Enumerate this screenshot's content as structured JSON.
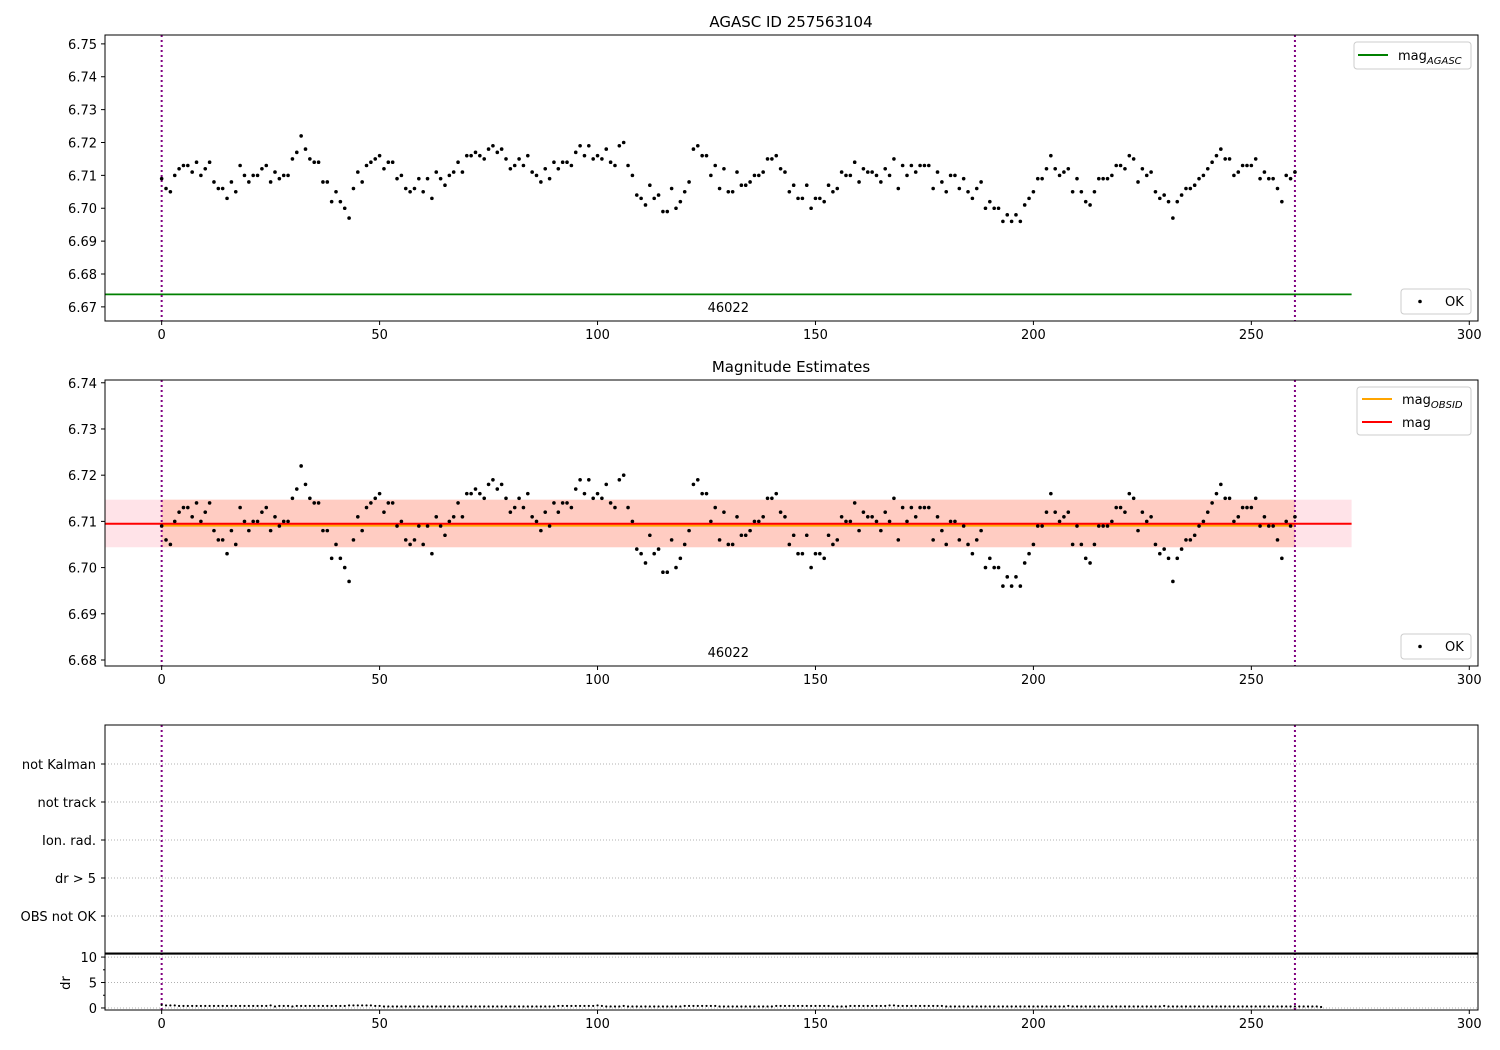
{
  "chart_data": [
    {
      "type": "scatter",
      "title": "AGASC ID 257563104",
      "xlim": [
        -13,
        302
      ],
      "ylim": [
        6.6657,
        6.7527
      ],
      "xticks": [
        0,
        50,
        100,
        150,
        200,
        250,
        300
      ],
      "yticks": [
        6.67,
        6.68,
        6.69,
        6.7,
        6.71,
        6.72,
        6.73,
        6.74,
        6.75
      ],
      "hlines": [
        {
          "name": "mag_AGASC",
          "label": "mag",
          "sub": "AGASC",
          "y": 6.6738,
          "x": [
            -13,
            273
          ],
          "color": "#008000"
        }
      ],
      "vlines": [
        0,
        260
      ],
      "annotation": {
        "text": "46022",
        "x": 130
      },
      "legend": [
        {
          "label": "mag",
          "sub": "AGASC",
          "position": "top-right"
        },
        {
          "label": "OK",
          "position": "bottom-right"
        }
      ],
      "series_ref": "mag"
    },
    {
      "type": "scatter",
      "title": "Magnitude Estimates",
      "xlim": [
        -13,
        302
      ],
      "ylim": [
        6.6787,
        6.7406
      ],
      "xticks": [
        0,
        50,
        100,
        150,
        200,
        250,
        300
      ],
      "yticks": [
        6.68,
        6.69,
        6.7,
        6.71,
        6.72,
        6.73,
        6.74
      ],
      "mag": 6.7095,
      "mag_obsid": 6.7093,
      "band_mag": [
        6.7044,
        6.7147
      ],
      "band_obsid": [
        6.7044,
        6.7147
      ],
      "vlines": [
        0,
        260
      ],
      "annotation": {
        "text": "46022",
        "x": 130
      },
      "legend": [
        {
          "label": "mag",
          "sub": "OBSID",
          "color": "#ffa500"
        },
        {
          "label": "mag",
          "color": "#ff0000"
        },
        {
          "label": "OK"
        }
      ],
      "series_ref": "mag"
    },
    {
      "type": "scatter",
      "title": "",
      "categories": [
        "OBS not OK",
        "dr > 5",
        "Ion. rad.",
        "not track",
        "not Kalman"
      ],
      "vlines": [
        0,
        260
      ]
    },
    {
      "type": "scatter",
      "ylabel": "dr",
      "xlim": [
        -13,
        302
      ],
      "ylim": [
        -0.4,
        10.8
      ],
      "yticks": [
        0,
        5,
        10
      ],
      "xticks": [
        0,
        50,
        100,
        150,
        200,
        250,
        300
      ],
      "vlines": [
        0,
        260
      ],
      "series_ref": "dr"
    }
  ],
  "series": {
    "mag": [
      6.709,
      6.706,
      6.705,
      6.71,
      6.712,
      6.713,
      6.713,
      6.711,
      6.714,
      6.71,
      6.712,
      6.714,
      6.708,
      6.706,
      6.706,
      6.703,
      6.708,
      6.705,
      6.713,
      6.71,
      6.708,
      6.71,
      6.71,
      6.712,
      6.713,
      6.708,
      6.711,
      6.709,
      6.71,
      6.71,
      6.715,
      6.717,
      6.722,
      6.718,
      6.715,
      6.714,
      6.714,
      6.708,
      6.708,
      6.702,
      6.705,
      6.702,
      6.7,
      6.697,
      6.706,
      6.711,
      6.708,
      6.713,
      6.714,
      6.715,
      6.716,
      6.712,
      6.714,
      6.714,
      6.709,
      6.71,
      6.706,
      6.705,
      6.706,
      6.709,
      6.705,
      6.709,
      6.703,
      6.711,
      6.709,
      6.707,
      6.71,
      6.711,
      6.714,
      6.711,
      6.716,
      6.716,
      6.717,
      6.716,
      6.715,
      6.718,
      6.719,
      6.717,
      6.718,
      6.715,
      6.712,
      6.713,
      6.715,
      6.713,
      6.716,
      6.711,
      6.71,
      6.708,
      6.712,
      6.709,
      6.714,
      6.712,
      6.714,
      6.714,
      6.713,
      6.717,
      6.719,
      6.716,
      6.719,
      6.715,
      6.716,
      6.715,
      6.718,
      6.714,
      6.713,
      6.719,
      6.72,
      6.713,
      6.71,
      6.704,
      6.703,
      6.701,
      6.707,
      6.703,
      6.704,
      6.699,
      6.699,
      6.706,
      6.7,
      6.702,
      6.705,
      6.708,
      6.718,
      6.719,
      6.716,
      6.716,
      6.71,
      6.713,
      6.706,
      6.712,
      6.705,
      6.705,
      6.711,
      6.707,
      6.707,
      6.708,
      6.71,
      6.71,
      6.711,
      6.715,
      6.715,
      6.716,
      6.712,
      6.711,
      6.705,
      6.707,
      6.703,
      6.703,
      6.707,
      6.7,
      6.703,
      6.703,
      6.702,
      6.707,
      6.705,
      6.706,
      6.711,
      6.71,
      6.71,
      6.714,
      6.708,
      6.712,
      6.711,
      6.711,
      6.71,
      6.708,
      6.712,
      6.71,
      6.715,
      6.706,
      6.713,
      6.71,
      6.713,
      6.711,
      6.713,
      6.713,
      6.713,
      6.706,
      6.711,
      6.708,
      6.705,
      6.71,
      6.71,
      6.706,
      6.709,
      6.705,
      6.703,
      6.706,
      6.708,
      6.7,
      6.702,
      6.7,
      6.7,
      6.696,
      6.698,
      6.696,
      6.698,
      6.696,
      6.701,
      6.703,
      6.705,
      6.709,
      6.709,
      6.712,
      6.716,
      6.712,
      6.71,
      6.711,
      6.712,
      6.705,
      6.709,
      6.705,
      6.702,
      6.701,
      6.705,
      6.709,
      6.709,
      6.709,
      6.71,
      6.713,
      6.713,
      6.712,
      6.716,
      6.715,
      6.708,
      6.712,
      6.71,
      6.711,
      6.705,
      6.703,
      6.704,
      6.702,
      6.697,
      6.702,
      6.704,
      6.706,
      6.706,
      6.707,
      6.709,
      6.71,
      6.712,
      6.714,
      6.716,
      6.718,
      6.715,
      6.715,
      6.71,
      6.711,
      6.713,
      6.713,
      6.713,
      6.715,
      6.709,
      6.711,
      6.709,
      6.709,
      6.706,
      6.702,
      6.71,
      6.709,
      6.711
    ],
    "dr": [
      0.6,
      0.5,
      0.5,
      0.5,
      0.4,
      0.4,
      0.4,
      0.4,
      0.4,
      0.4,
      0.4,
      0.4,
      0.4,
      0.4,
      0.4,
      0.4,
      0.4,
      0.4,
      0.4,
      0.4,
      0.4,
      0.4,
      0.4,
      0.4,
      0.4,
      0.5,
      0.3,
      0.4,
      0.4,
      0.4,
      0.3,
      0.4,
      0.4,
      0.4,
      0.4,
      0.4,
      0.4,
      0.4,
      0.4,
      0.4,
      0.4,
      0.4,
      0.4,
      0.5,
      0.5,
      0.5,
      0.5,
      0.5,
      0.5,
      0.4,
      0.4,
      0.3,
      0.3,
      0.3,
      0.3,
      0.3,
      0.3,
      0.3,
      0.3,
      0.3,
      0.3,
      0.3,
      0.3,
      0.3,
      0.3,
      0.3,
      0.3,
      0.3,
      0.3,
      0.3,
      0.3,
      0.3,
      0.3,
      0.3,
      0.3,
      0.3,
      0.3,
      0.3,
      0.3,
      0.3,
      0.3,
      0.3,
      0.3,
      0.3,
      0.3,
      0.3,
      0.3,
      0.3,
      0.3,
      0.3,
      0.3,
      0.4,
      0.4,
      0.4,
      0.4,
      0.4,
      0.4,
      0.4,
      0.4,
      0.4,
      0.5,
      0.4,
      0.3,
      0.3,
      0.3,
      0.3,
      0.4,
      0.3,
      0.3,
      0.3,
      0.3,
      0.3,
      0.3,
      0.3,
      0.3,
      0.3,
      0.3,
      0.3,
      0.3,
      0.3,
      0.4,
      0.4,
      0.4,
      0.4,
      0.4,
      0.4,
      0.4,
      0.4,
      0.3,
      0.3,
      0.3,
      0.3,
      0.3,
      0.3,
      0.3,
      0.3,
      0.3,
      0.3,
      0.3,
      0.3,
      0.3,
      0.4,
      0.4,
      0.4,
      0.4,
      0.4,
      0.4,
      0.4,
      0.4,
      0.4,
      0.4,
      0.4,
      0.4,
      0.4,
      0.3,
      0.3,
      0.3,
      0.3,
      0.4,
      0.4,
      0.4,
      0.4,
      0.4,
      0.4,
      0.4,
      0.4,
      0.4,
      0.5,
      0.5,
      0.4,
      0.4,
      0.4,
      0.4,
      0.4,
      0.4,
      0.4,
      0.4,
      0.4,
      0.4,
      0.4,
      0.3,
      0.3,
      0.3,
      0.3,
      0.3,
      0.3,
      0.3,
      0.3,
      0.3,
      0.3,
      0.3,
      0.3,
      0.3,
      0.3,
      0.3,
      0.3,
      0.3,
      0.3,
      0.3,
      0.3,
      0.3,
      0.3,
      0.3,
      0.3,
      0.3,
      0.3,
      0.3,
      0.3,
      0.4,
      0.3,
      0.3,
      0.3,
      0.3,
      0.3,
      0.3,
      0.3,
      0.3,
      0.3,
      0.3,
      0.3,
      0.3,
      0.3,
      0.3,
      0.3,
      0.3,
      0.3,
      0.3,
      0.3,
      0.3,
      0.3,
      0.4,
      0.3,
      0.3,
      0.3,
      0.3,
      0.3,
      0.3,
      0.3,
      0.3,
      0.3,
      0.3,
      0.3,
      0.3,
      0.3,
      0.3,
      0.3,
      0.3,
      0.3,
      0.3,
      0.3,
      0.3,
      0.3,
      0.3,
      0.3,
      0.3,
      0.3,
      0.3,
      0.3,
      0.3,
      0.3,
      0.3,
      0.3,
      0.3,
      0.3,
      0.3,
      0.3,
      0.2
    ]
  },
  "colors": {
    "points": "#000000",
    "vline": "#800080",
    "agasc": "#008000",
    "mag": "#ff0000",
    "obsid": "#ffa500",
    "band_mag": "#ffc0cb",
    "band_obsid": "#ffa07a",
    "grid": "#b0b0b0"
  }
}
